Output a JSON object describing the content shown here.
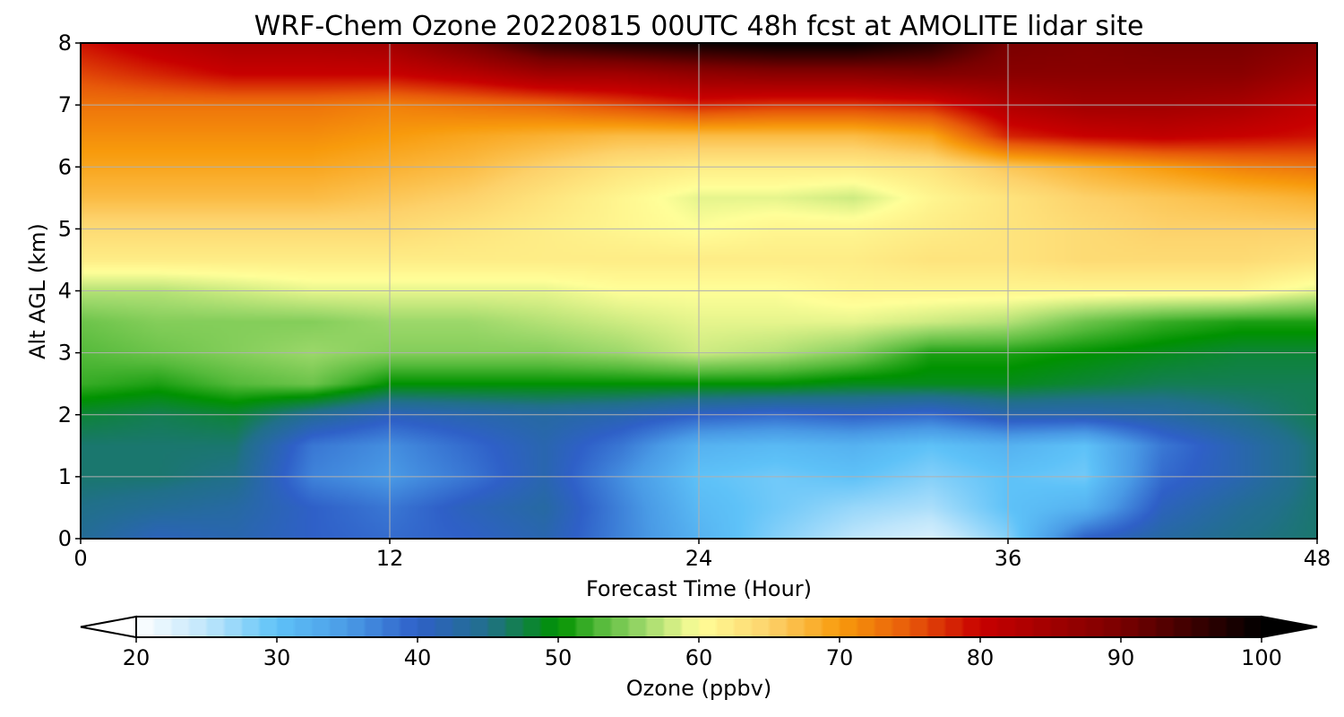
{
  "chart_data": {
    "type": "heatmap",
    "title": "WRF-Chem Ozone  20220815 00UTC 48h fcst at AMOLITE lidar site",
    "xlabel": "Forecast Time (Hour)",
    "ylabel": "Alt AGL (km)",
    "xlim": [
      0,
      48
    ],
    "ylim": [
      0,
      8
    ],
    "x_ticks": [
      0,
      12,
      24,
      36,
      48
    ],
    "y_ticks": [
      0,
      1,
      2,
      3,
      4,
      5,
      6,
      7,
      8
    ],
    "grid": true,
    "x": [
      0,
      3,
      6,
      9,
      12,
      15,
      18,
      21,
      24,
      27,
      30,
      33,
      36,
      39,
      42,
      45,
      48
    ],
    "y": [
      0,
      0.5,
      1,
      1.5,
      2,
      2.5,
      3,
      3.5,
      4,
      4.5,
      5,
      5.5,
      6,
      6.5,
      7,
      7.5,
      8
    ],
    "z": [
      [
        44,
        41,
        42,
        40,
        39,
        40,
        42,
        37,
        32,
        28,
        25,
        23,
        28,
        40,
        43,
        45,
        46
      ],
      [
        45,
        44,
        43,
        40,
        38,
        41,
        43,
        37,
        31,
        29,
        27,
        26,
        30,
        32,
        41,
        44,
        46
      ],
      [
        46,
        46,
        45,
        37,
        35,
        38,
        42,
        36,
        30,
        29,
        30,
        28,
        30,
        29,
        39,
        42,
        46
      ],
      [
        46,
        46,
        46,
        38,
        36,
        39,
        42,
        38,
        32,
        31,
        32,
        30,
        32,
        30,
        38,
        42,
        46
      ],
      [
        48,
        47,
        48,
        44,
        41,
        42,
        43,
        42,
        40,
        39,
        40,
        39,
        42,
        42,
        43,
        45,
        47
      ],
      [
        52,
        51,
        53,
        54,
        50,
        50,
        50,
        50,
        50,
        50,
        49,
        49,
        49,
        48,
        47,
        47,
        47
      ],
      [
        53,
        54,
        55,
        56,
        55,
        55,
        55,
        56,
        58,
        57,
        55,
        51,
        51,
        50,
        49,
        48,
        48
      ],
      [
        54,
        55,
        55,
        55,
        56,
        56,
        57,
        58,
        59,
        59,
        59,
        58,
        57,
        54,
        52,
        51,
        51
      ],
      [
        57,
        57,
        58,
        59,
        59,
        59,
        59,
        60,
        60,
        60,
        61,
        61,
        61,
        61,
        61,
        61,
        59
      ],
      [
        62,
        62,
        62,
        62,
        62,
        62,
        62,
        62,
        62,
        62,
        62,
        63,
        63,
        64,
        64,
        64,
        63
      ],
      [
        64,
        64,
        64,
        64,
        64,
        63,
        62,
        61,
        60,
        61,
        61,
        62,
        63,
        64,
        65,
        65,
        65
      ],
      [
        67,
        67,
        67,
        67,
        66,
        65,
        63,
        61,
        59,
        59,
        58,
        61,
        63,
        65,
        66,
        67,
        68
      ],
      [
        69,
        69,
        69,
        69,
        68,
        67,
        65,
        63,
        62,
        62,
        62,
        63,
        66,
        68,
        70,
        72,
        73
      ],
      [
        71,
        71,
        71,
        71,
        70,
        69,
        68,
        67,
        67,
        67,
        67,
        69,
        78,
        80,
        81,
        80,
        79
      ],
      [
        73,
        73,
        73,
        73,
        72,
        73,
        74,
        76,
        78,
        77,
        77,
        78,
        83,
        85,
        85,
        84,
        81
      ],
      [
        76,
        78,
        80,
        80,
        80,
        82,
        85,
        85,
        87,
        88,
        88,
        89,
        88,
        88,
        88,
        88,
        85
      ],
      [
        79,
        82,
        84,
        84,
        85,
        90,
        96,
        98,
        99,
        100,
        100,
        97,
        90,
        89,
        90,
        90,
        88
      ]
    ],
    "colorbar": {
      "label": "Ozone  (ppbv)",
      "min": 20,
      "max": 100,
      "ticks": [
        20,
        30,
        40,
        50,
        60,
        70,
        80,
        90,
        100
      ],
      "extend": "both",
      "stops": [
        {
          "v": 20,
          "c": "#ffffff"
        },
        {
          "v": 25,
          "c": "#bfe6fb"
        },
        {
          "v": 30,
          "c": "#5ec2f8"
        },
        {
          "v": 35,
          "c": "#4a9be6"
        },
        {
          "v": 40,
          "c": "#2f60c8"
        },
        {
          "v": 45,
          "c": "#21708a"
        },
        {
          "v": 50,
          "c": "#009200"
        },
        {
          "v": 53,
          "c": "#55ba3b"
        },
        {
          "v": 56,
          "c": "#9cd86a"
        },
        {
          "v": 60,
          "c": "#ffff99"
        },
        {
          "v": 65,
          "c": "#fdd26b"
        },
        {
          "v": 70,
          "c": "#f89b0c"
        },
        {
          "v": 75,
          "c": "#e85a0a"
        },
        {
          "v": 80,
          "c": "#c80000"
        },
        {
          "v": 90,
          "c": "#7a0000"
        },
        {
          "v": 100,
          "c": "#000000"
        }
      ]
    }
  }
}
